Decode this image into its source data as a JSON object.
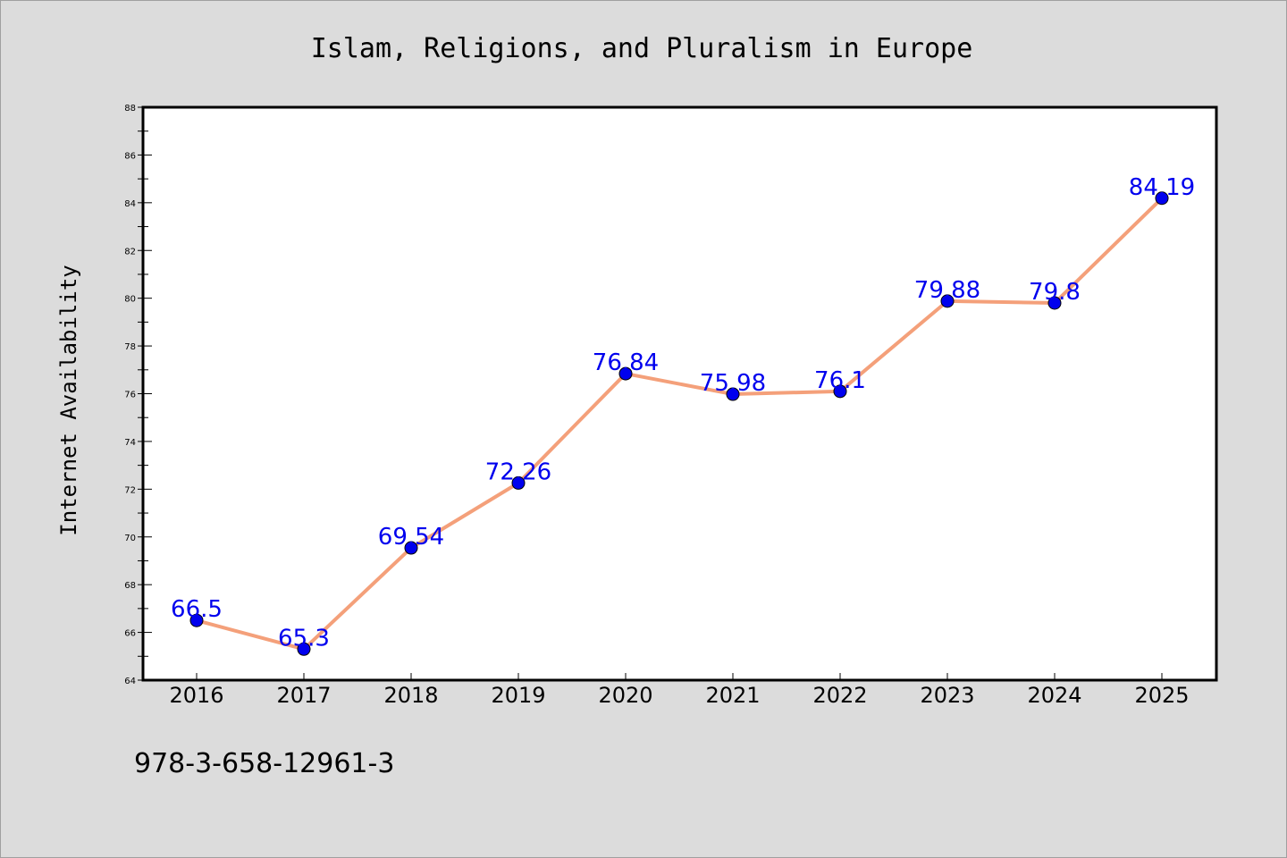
{
  "chart_data": {
    "type": "line",
    "title": "Islam, Religions, and Pluralism in Europe",
    "xlabel": "",
    "ylabel": "Internet Availability",
    "categories": [
      "2016",
      "2017",
      "2018",
      "2019",
      "2020",
      "2021",
      "2022",
      "2023",
      "2024",
      "2025"
    ],
    "series": [
      {
        "values": [
          66.5,
          65.3,
          69.54,
          72.26,
          76.84,
          75.98,
          76.1,
          79.88,
          79.8,
          84.19
        ],
        "labels": [
          "66.5",
          "65.3",
          "69.54",
          "72.26",
          "76.84",
          "75.98",
          "76.1",
          "79.88",
          "79.8",
          "84.19"
        ]
      }
    ],
    "ylim": [
      64,
      88
    ],
    "yticks": [
      "64",
      "66",
      "68",
      "70",
      "72",
      "74",
      "76",
      "78",
      "80",
      "82",
      "84",
      "86",
      "88"
    ],
    "grid": false,
    "line_color": "#f4a07a",
    "marker_color": "#0000ee",
    "label_color": "#0000ee",
    "plot_background": "#ffffff",
    "figure_background": "#dcdcdc"
  },
  "footer": {
    "isbn": "978-3-658-12961-3"
  }
}
